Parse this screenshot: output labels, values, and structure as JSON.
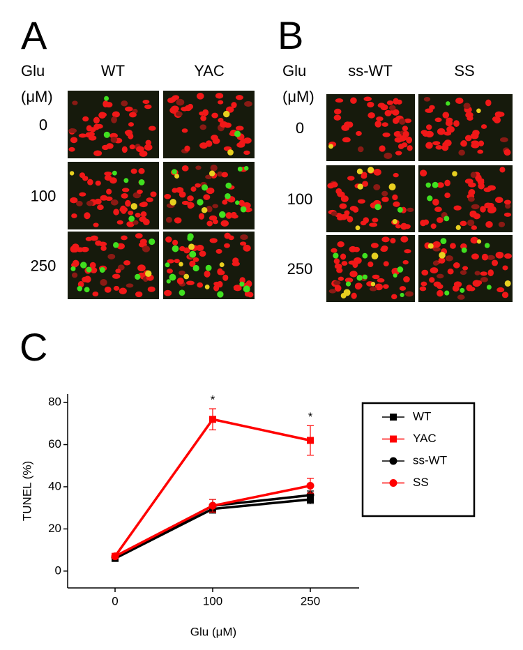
{
  "panel_a": {
    "label": "A",
    "row_header": [
      "Glu",
      "(μM)"
    ],
    "columns": [
      "WT",
      "YAC"
    ],
    "rows": [
      "0",
      "100",
      "250"
    ]
  },
  "panel_b": {
    "label": "B",
    "row_header": [
      "Glu",
      "(μM)"
    ],
    "columns": [
      "ss-WT",
      "SS"
    ],
    "rows": [
      "0",
      "100",
      "250"
    ]
  },
  "chart_data": {
    "type": "line",
    "panel_label": "C",
    "x_label": "Glu (μM)",
    "y_label": "TUNEL (%)",
    "categories": [
      "0",
      "100",
      "250"
    ],
    "ylim": [
      -8,
      84
    ],
    "yticks": [
      0,
      20,
      40,
      60,
      80
    ],
    "legend": "right",
    "series": [
      {
        "name": "WT",
        "color": "#000000",
        "marker": "square",
        "values": [
          6,
          29.5,
          34
        ],
        "errors": [
          1,
          2,
          2
        ]
      },
      {
        "name": "YAC",
        "color": "#ff0000",
        "marker": "square",
        "values": [
          7,
          72,
          62
        ],
        "errors": [
          1,
          5,
          7
        ],
        "annotations": [
          null,
          "*",
          "*"
        ]
      },
      {
        "name": "ss-WT",
        "color": "#000000",
        "marker": "circle",
        "values": [
          6.5,
          31,
          36
        ],
        "errors": [
          1,
          3,
          2
        ]
      },
      {
        "name": "SS",
        "color": "#ff0000",
        "marker": "circle",
        "values": [
          7,
          31,
          40.5
        ],
        "errors": [
          1,
          3,
          3.5
        ]
      }
    ]
  }
}
